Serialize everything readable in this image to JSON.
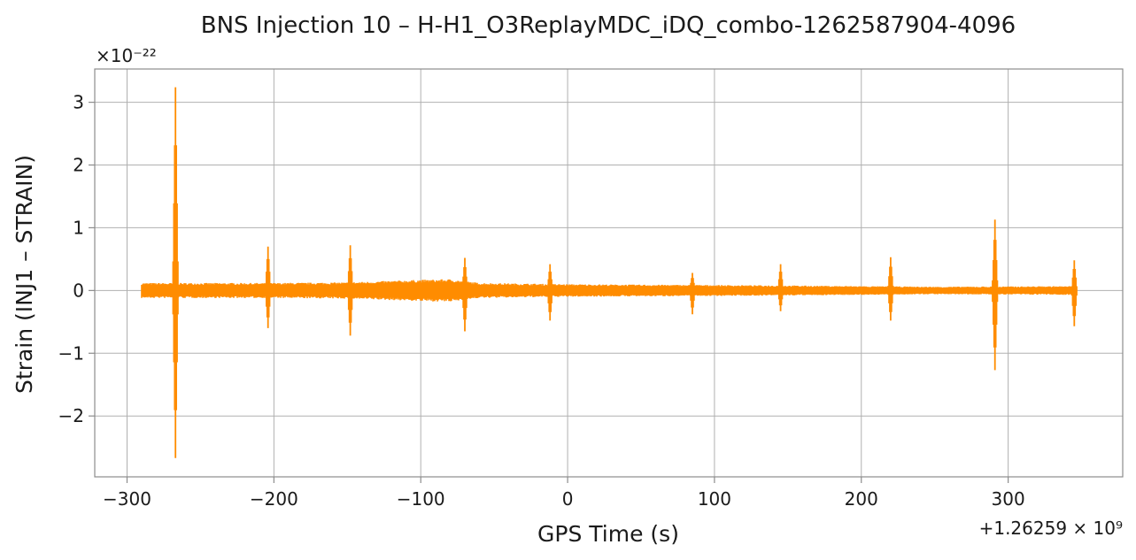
{
  "chart_data": {
    "type": "line",
    "title": "BNS Injection 10 – H-H1_O3ReplayMDC_iDQ_combo-1262587904-4096",
    "xlabel": "GPS Time (s)",
    "ylabel": "Strain (INJ1 – STRAIN)",
    "x_offset_label": "+1.26259 × 10⁹",
    "y_scale_label": "×10⁻²²",
    "xlim": [
      -322,
      378
    ],
    "ylim": [
      -2.97,
      3.53
    ],
    "x_ticks": [
      -300,
      -200,
      -100,
      0,
      100,
      200,
      300
    ],
    "x_tick_labels": [
      "−300",
      "−200",
      "−100",
      "0",
      "100",
      "200",
      "300"
    ],
    "y_ticks": [
      -2,
      -1,
      0,
      1,
      2,
      3
    ],
    "y_tick_labels": [
      "−2",
      "−1",
      "0",
      "1",
      "2",
      "3"
    ],
    "grid": true,
    "color": "#ff8c00",
    "series": [
      {
        "x_range": [
          -290,
          346
        ],
        "baseline_noise": [
          {
            "x": -290,
            "amp": 0.12
          },
          {
            "x": -200,
            "amp": 0.12
          },
          {
            "x": -150,
            "amp": 0.13
          },
          {
            "x": -100,
            "amp": 0.17
          },
          {
            "x": -80,
            "amp": 0.18
          },
          {
            "x": -60,
            "amp": 0.12
          },
          {
            "x": 0,
            "amp": 0.1
          },
          {
            "x": 80,
            "amp": 0.09
          },
          {
            "x": 150,
            "amp": 0.08
          },
          {
            "x": 250,
            "amp": 0.06
          },
          {
            "x": 346,
            "amp": 0.07
          }
        ],
        "glitches": [
          {
            "x": -267,
            "max": 3.24,
            "min": -2.67
          },
          {
            "x": -204,
            "max": 0.7,
            "min": -0.6
          },
          {
            "x": -148,
            "max": 0.72,
            "min": -0.72
          },
          {
            "x": -70,
            "max": 0.52,
            "min": -0.65
          },
          {
            "x": -12,
            "max": 0.42,
            "min": -0.48
          },
          {
            "x": 85,
            "max": 0.28,
            "min": -0.38
          },
          {
            "x": 145,
            "max": 0.42,
            "min": -0.33
          },
          {
            "x": 220,
            "max": 0.53,
            "min": -0.48
          },
          {
            "x": 291,
            "max": 1.13,
            "min": -1.27
          },
          {
            "x": 345,
            "max": 0.48,
            "min": -0.57
          }
        ]
      }
    ]
  }
}
